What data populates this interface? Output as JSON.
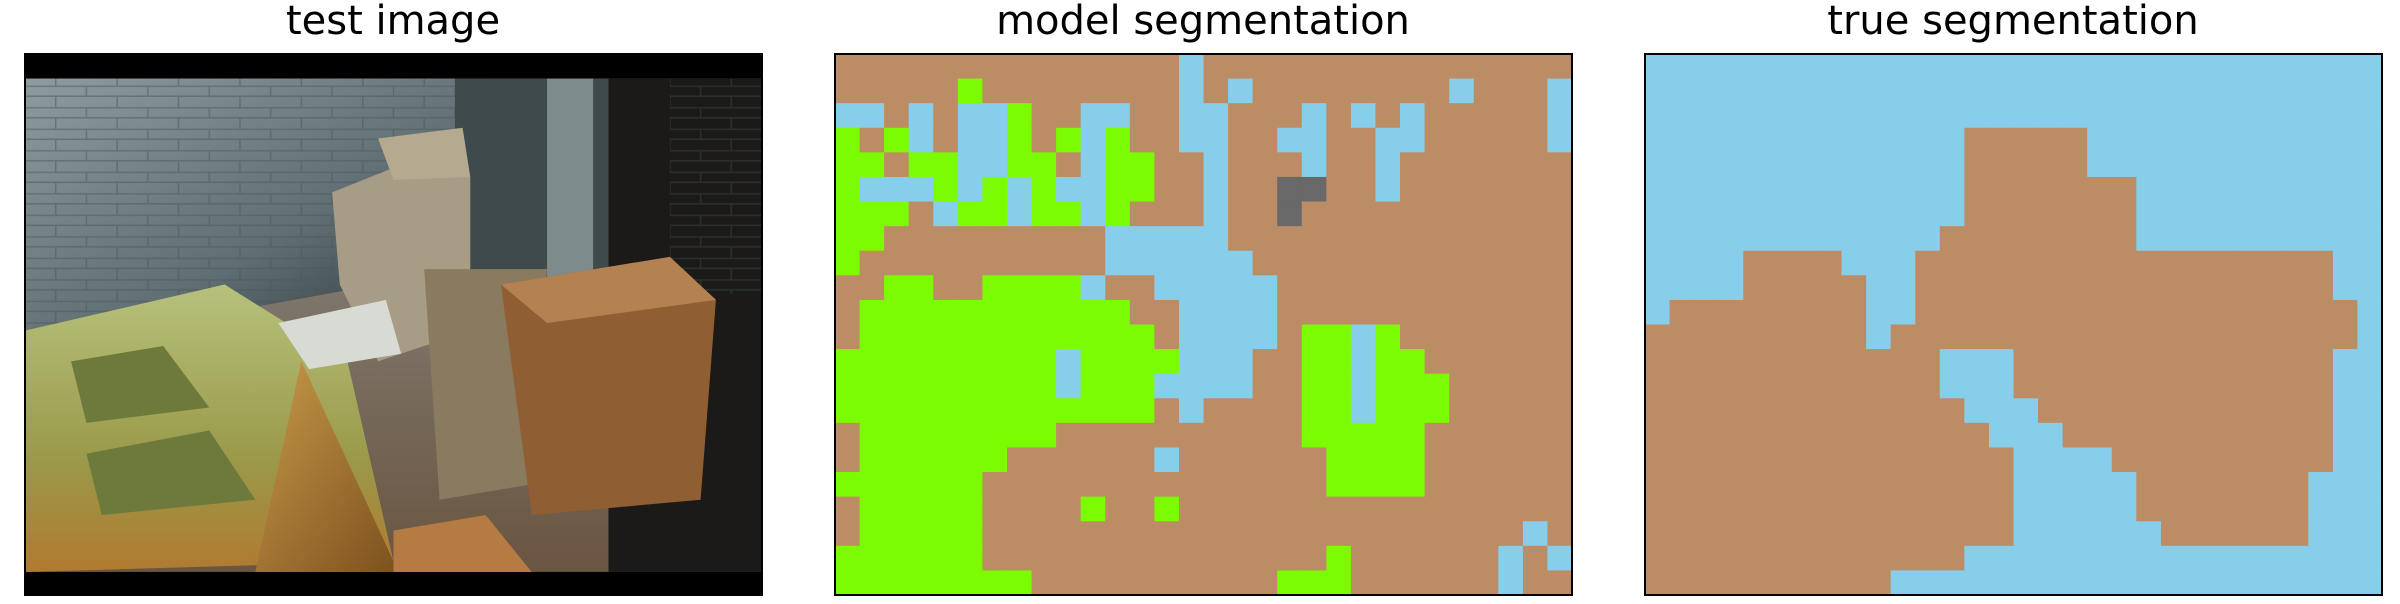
{
  "panels": [
    {
      "title": "test image"
    },
    {
      "title": "model segmentation"
    },
    {
      "title": "true segmentation"
    }
  ]
}
